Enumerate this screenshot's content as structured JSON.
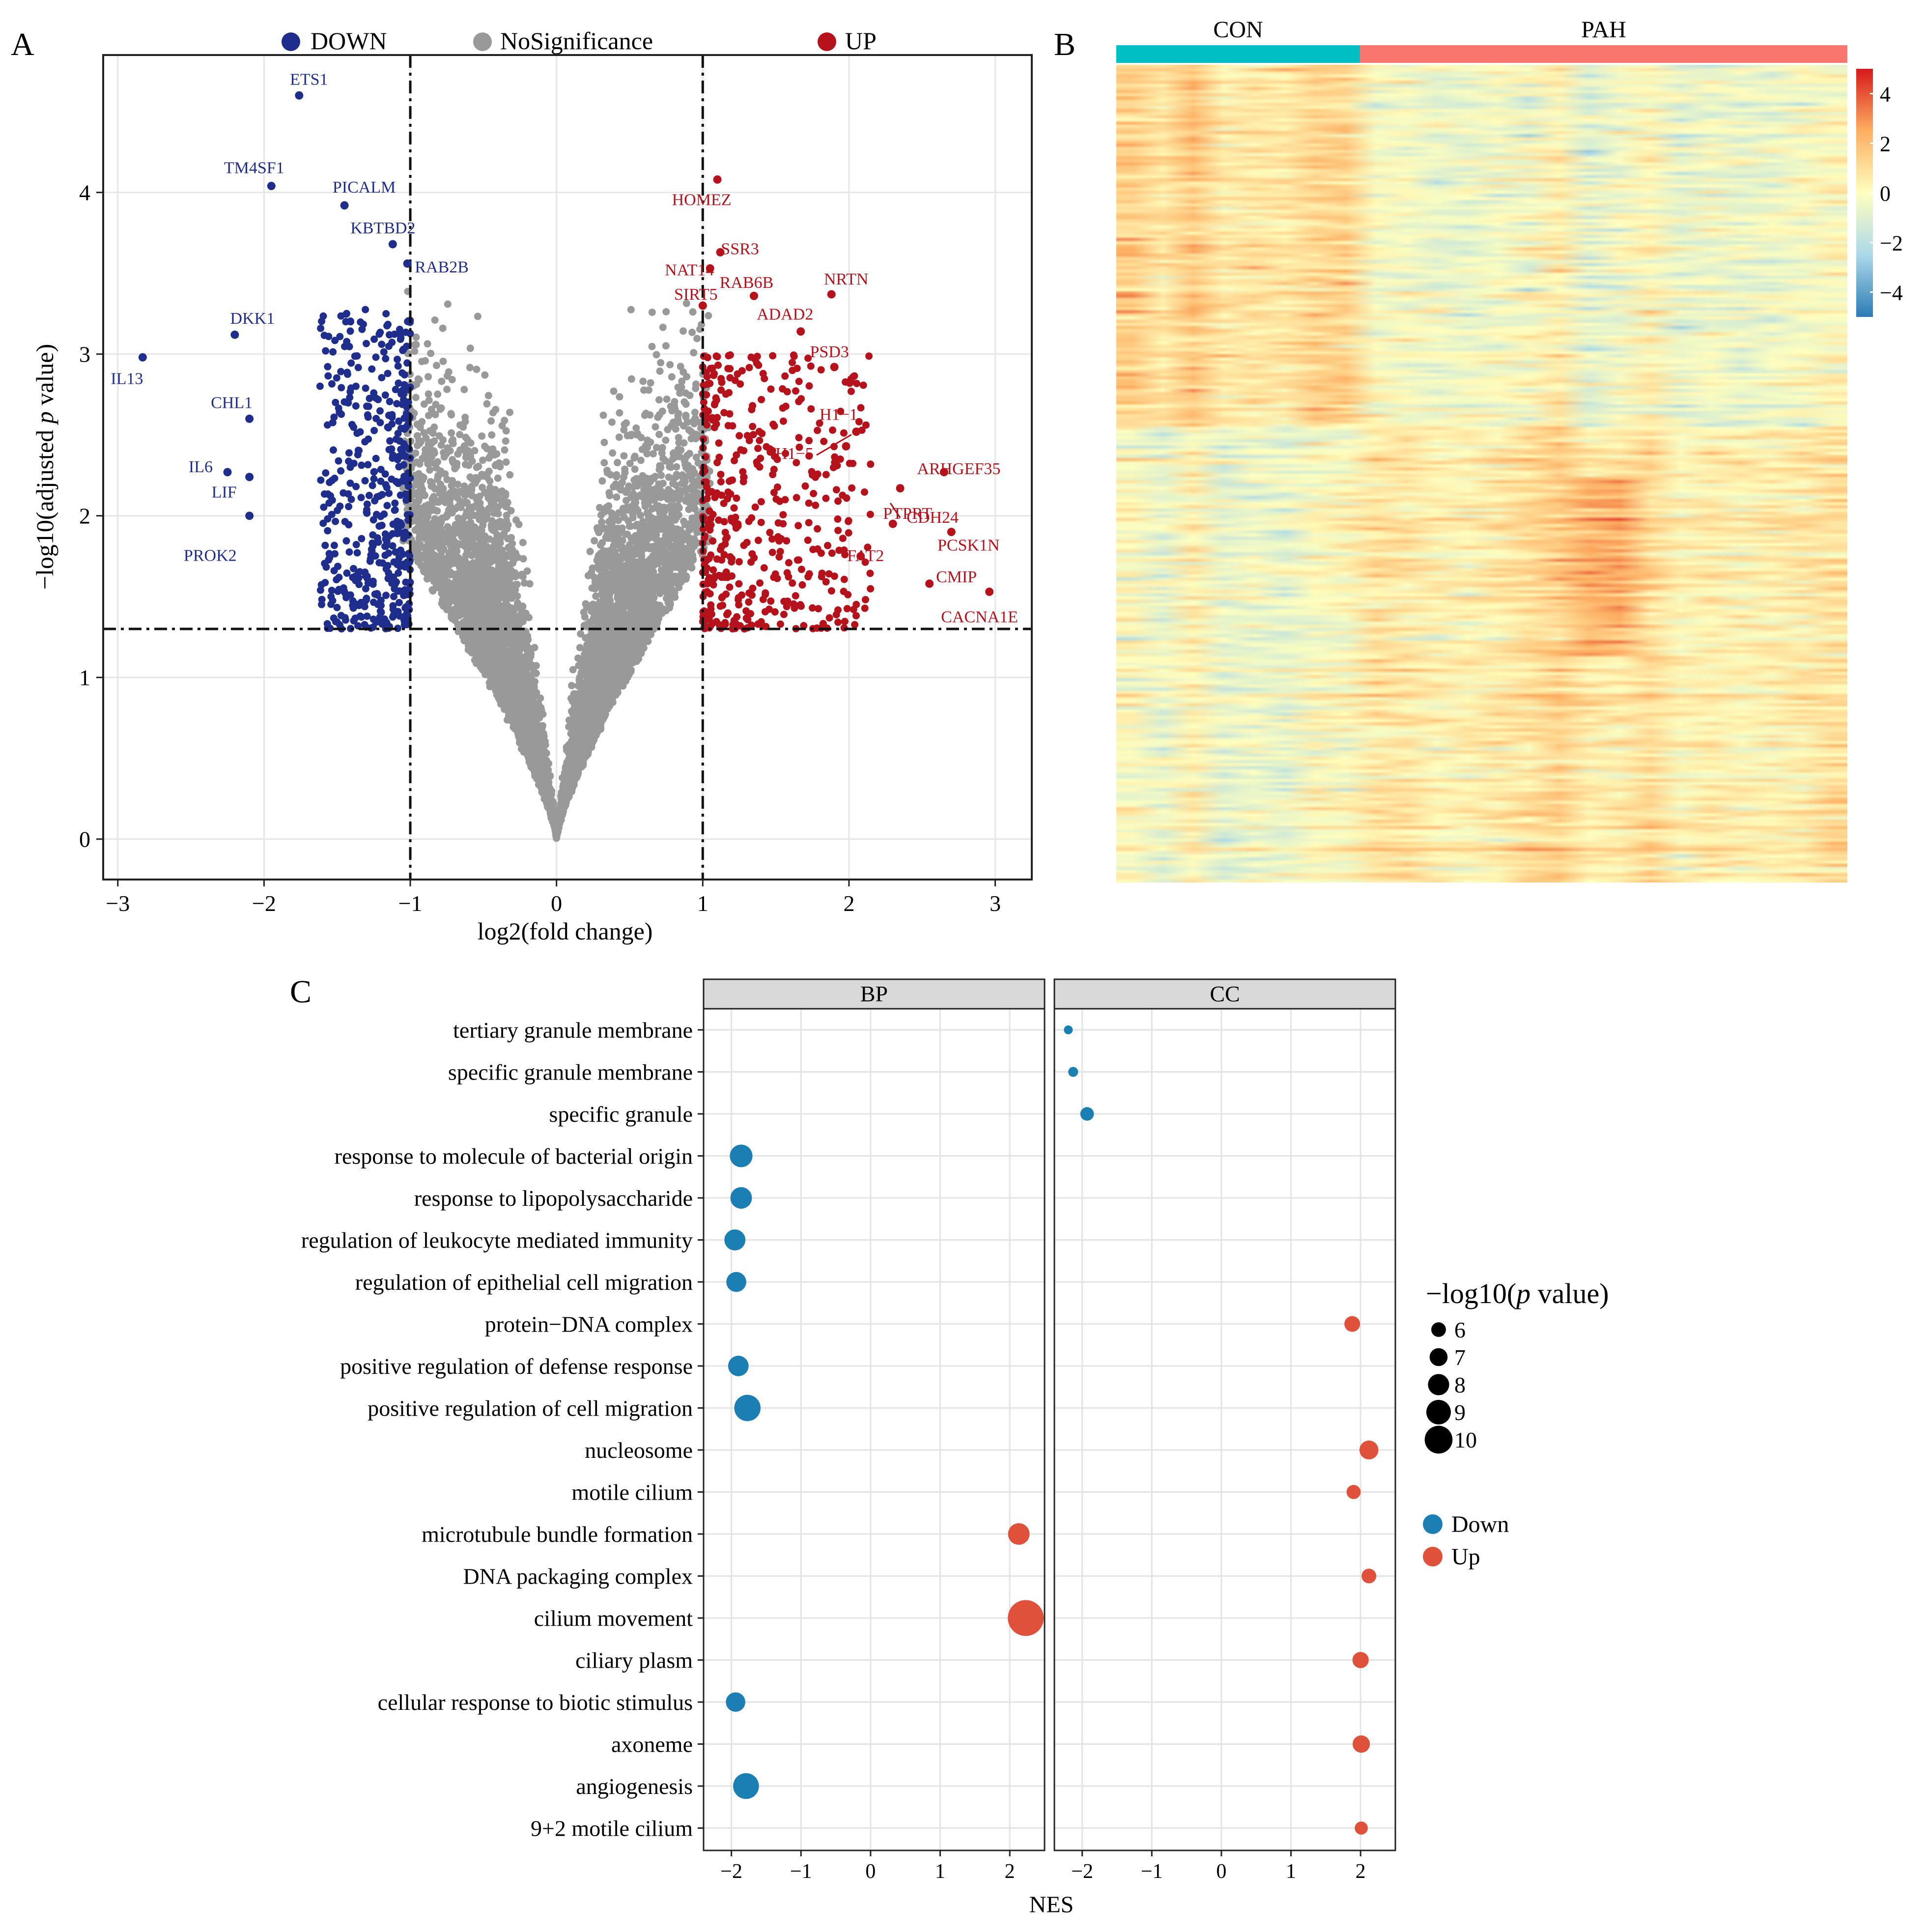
{
  "colors": {
    "down": "#1f2e8c",
    "ns": "#999999",
    "up": "#b5121b",
    "gsea_down": "#1b7fb3",
    "gsea_up": "#e0513c",
    "con_bar": "#00bfc4",
    "pah_bar": "#f8766d"
  },
  "panels": {
    "a": "A",
    "b": "B",
    "c": "C"
  },
  "chart_data": [
    {
      "type": "scatter",
      "name": "volcano",
      "xlabel": "log2(fold change)",
      "ylabel_parts": [
        "−log10(adjusted ",
        "p",
        " value)"
      ],
      "xlim": [
        -3.1,
        3.25
      ],
      "ylim": [
        -0.25,
        4.85
      ],
      "xticks": [
        -3,
        -2,
        -1,
        0,
        1,
        2,
        3
      ],
      "xtick_labels": [
        "−3",
        "−2",
        "−1",
        "0",
        "1",
        "2",
        "3"
      ],
      "yticks": [
        0,
        1,
        2,
        3,
        4
      ],
      "ytick_labels": [
        "0",
        "1",
        "2",
        "3",
        "4"
      ],
      "thresholds": {
        "fc": [
          -1,
          1
        ],
        "p": 1.3
      },
      "legend": [
        {
          "label": "DOWN",
          "key": "down"
        },
        {
          "label": "NoSignificance",
          "key": "ns"
        },
        {
          "label": "UP",
          "key": "up"
        }
      ],
      "labeled_down": [
        {
          "gene": "ETS1",
          "x": -1.76,
          "y": 4.6
        },
        {
          "gene": "TM4SF1",
          "x": -1.95,
          "y": 4.04
        },
        {
          "gene": "PICALM",
          "x": -1.45,
          "y": 3.92
        },
        {
          "gene": "KBTBD2",
          "x": -1.12,
          "y": 3.68
        },
        {
          "gene": "RAB2B",
          "x": -1.02,
          "y": 3.56
        },
        {
          "gene": "DKK1",
          "x": -2.2,
          "y": 3.12
        },
        {
          "gene": "IL13",
          "x": -2.83,
          "y": 2.98
        },
        {
          "gene": "CHL1",
          "x": -2.1,
          "y": 2.6
        },
        {
          "gene": "IL6",
          "x": -2.25,
          "y": 2.27
        },
        {
          "gene": "LIF",
          "x": -2.1,
          "y": 2.24
        },
        {
          "gene": "PROK2",
          "x": -2.1,
          "y": 2.0
        }
      ],
      "labeled_up": [
        {
          "gene": "HOMEZ",
          "x": 1.1,
          "y": 4.08
        },
        {
          "gene": "SSR3",
          "x": 1.12,
          "y": 3.63
        },
        {
          "gene": "NAT14",
          "x": 1.05,
          "y": 3.53
        },
        {
          "gene": "RAB6B",
          "x": 1.35,
          "y": 3.36
        },
        {
          "gene": "NRTN",
          "x": 1.88,
          "y": 3.37
        },
        {
          "gene": "SIRT5",
          "x": 1.0,
          "y": 3.3
        },
        {
          "gene": "ADAD2",
          "x": 1.67,
          "y": 3.14
        },
        {
          "gene": "PSD3",
          "x": 1.9,
          "y": 2.92
        },
        {
          "gene": "H1−1",
          "x": 2.05,
          "y": 2.52
        },
        {
          "gene": "H1−5",
          "x": 1.98,
          "y": 2.43
        },
        {
          "gene": "ARHGEF35",
          "x": 2.65,
          "y": 2.27
        },
        {
          "gene": "CDH24",
          "x": 2.35,
          "y": 2.17
        },
        {
          "gene": "PTPRT",
          "x": 2.3,
          "y": 1.95
        },
        {
          "gene": "PCSK1N",
          "x": 2.7,
          "y": 1.9
        },
        {
          "gene": "FAT2",
          "x": 2.08,
          "y": 1.75
        },
        {
          "gene": "CMIP",
          "x": 2.55,
          "y": 1.58
        },
        {
          "gene": "CACNA1E",
          "x": 2.96,
          "y": 1.53
        }
      ]
    },
    {
      "type": "heatmap",
      "name": "expression heatmap",
      "groups": [
        {
          "label": "CON",
          "n": 8
        },
        {
          "label": "PAH",
          "n": 16
        }
      ],
      "colorbar_ticks": [
        4,
        2,
        0,
        -2,
        -4
      ],
      "colorbar_labels": [
        "4",
        "2",
        "0",
        "−2",
        "−4"
      ],
      "value_range": [
        -5,
        5
      ]
    },
    {
      "type": "scatter",
      "name": "GSEA dotplot",
      "xlabel": "NES",
      "facets": [
        "BP",
        "CC"
      ],
      "xlim": [
        -2.4,
        2.5
      ],
      "xticks": [
        -2,
        -1,
        0,
        1,
        2
      ],
      "xtick_labels": [
        "−2",
        "−1",
        "0",
        "1",
        "2"
      ],
      "categories": [
        "tertiary granule membrane",
        "specific granule membrane",
        "specific granule",
        "response to molecule of bacterial origin",
        "response to lipopolysaccharide",
        "regulation of leukocyte mediated immunity",
        "regulation of epithelial cell migration",
        "protein−DNA complex",
        "positive regulation of defense response",
        "positive regulation of cell migration",
        "nucleosome",
        "motile cilium",
        "microtubule bundle formation",
        "DNA packaging complex",
        "cilium movement",
        "ciliary plasm",
        "cellular response to biotic stimulus",
        "axoneme",
        "angiogenesis",
        "9+2 motile cilium"
      ],
      "points": [
        {
          "facet": "BP",
          "term": "response to molecule of bacterial origin",
          "nes": -1.86,
          "logp": 7.6,
          "dir": "Down"
        },
        {
          "facet": "BP",
          "term": "response to lipopolysaccharide",
          "nes": -1.86,
          "logp": 7.4,
          "dir": "Down"
        },
        {
          "facet": "BP",
          "term": "regulation of leukocyte mediated immunity",
          "nes": -1.95,
          "logp": 7.3,
          "dir": "Down"
        },
        {
          "facet": "BP",
          "term": "regulation of epithelial cell migration",
          "nes": -1.93,
          "logp": 7.1,
          "dir": "Down"
        },
        {
          "facet": "BP",
          "term": "positive regulation of defense response",
          "nes": -1.9,
          "logp": 7.2,
          "dir": "Down"
        },
        {
          "facet": "BP",
          "term": "positive regulation of cell migration",
          "nes": -1.77,
          "logp": 8.3,
          "dir": "Down"
        },
        {
          "facet": "BP",
          "term": "microtubule bundle formation",
          "nes": 2.13,
          "logp": 7.4,
          "dir": "Up"
        },
        {
          "facet": "BP",
          "term": "cilium movement",
          "nes": 2.23,
          "logp": 10.1,
          "dir": "Up"
        },
        {
          "facet": "BP",
          "term": "cellular response to biotic stimulus",
          "nes": -1.94,
          "logp": 7.0,
          "dir": "Down"
        },
        {
          "facet": "BP",
          "term": "angiogenesis",
          "nes": -1.79,
          "logp": 8.2,
          "dir": "Down"
        },
        {
          "facet": "CC",
          "term": "tertiary granule membrane",
          "nes": -2.2,
          "logp": 5.0,
          "dir": "Down"
        },
        {
          "facet": "CC",
          "term": "specific granule membrane",
          "nes": -2.13,
          "logp": 5.2,
          "dir": "Down"
        },
        {
          "facet": "CC",
          "term": "specific granule",
          "nes": -1.93,
          "logp": 5.9,
          "dir": "Down"
        },
        {
          "facet": "CC",
          "term": "protein−DNA complex",
          "nes": 1.88,
          "logp": 6.3,
          "dir": "Up"
        },
        {
          "facet": "CC",
          "term": "nucleosome",
          "nes": 2.12,
          "logp": 6.9,
          "dir": "Up"
        },
        {
          "facet": "CC",
          "term": "motile cilium",
          "nes": 1.9,
          "logp": 6.0,
          "dir": "Up"
        },
        {
          "facet": "CC",
          "term": "DNA packaging complex",
          "nes": 2.12,
          "logp": 6.1,
          "dir": "Up"
        },
        {
          "facet": "CC",
          "term": "ciliary plasm",
          "nes": 2.0,
          "logp": 6.4,
          "dir": "Up"
        },
        {
          "facet": "CC",
          "term": "axoneme",
          "nes": 2.01,
          "logp": 6.6,
          "dir": "Up"
        },
        {
          "facet": "CC",
          "term": "9+2 motile cilium",
          "nes": 2.01,
          "logp": 5.8,
          "dir": "Up"
        }
      ],
      "size_legend_title_parts": [
        "−log10(",
        "p",
        " value)"
      ],
      "size_legend": [
        6,
        7,
        8,
        9,
        10
      ],
      "size_legend_labels": [
        "6",
        "7",
        "8",
        "9",
        "10"
      ],
      "color_legend": [
        {
          "label": "Down",
          "key": "gsea_down"
        },
        {
          "label": "Up",
          "key": "gsea_up"
        }
      ]
    }
  ]
}
